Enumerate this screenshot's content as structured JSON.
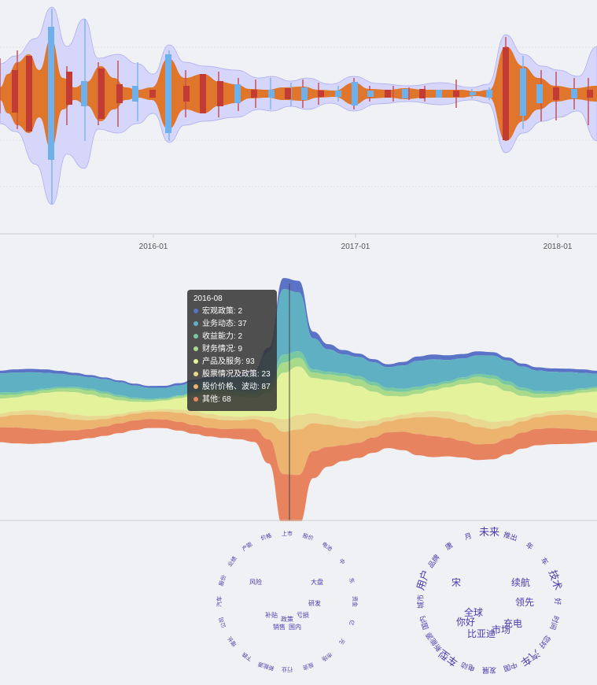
{
  "colors": {
    "background": "#f0f1f4",
    "envelope": "#d6d6fb",
    "envelope_stroke": "#a9a9f0",
    "orange": "#e0762b",
    "red": "#c23b34",
    "blue": "#6db0ec",
    "axis": "#cccccc"
  },
  "top_chart": {
    "x_ticks": [
      "2016-01",
      "2017-01",
      "2018-01"
    ]
  },
  "stream_chart": {
    "series": [
      {
        "name": "宏观政策",
        "color": "#5b73c7"
      },
      {
        "name": "业务动态",
        "color": "#5fb0c3"
      },
      {
        "name": "收益能力",
        "color": "#78c9a2"
      },
      {
        "name": "财务情况",
        "color": "#a9da8a"
      },
      {
        "name": "产品及服务",
        "color": "#e3f29b"
      },
      {
        "name": "股票情况及政策",
        "color": "#e9d890"
      },
      {
        "name": "股价价格、波动",
        "color": "#ecb46e"
      },
      {
        "name": "其他",
        "color": "#e7845f"
      }
    ],
    "tooltip": {
      "title": "2016-08",
      "values": [
        2,
        37,
        2,
        9,
        93,
        23,
        87,
        68
      ]
    }
  },
  "wordclouds": {
    "sad": [
      "上市",
      "股价",
      "电池",
      "中",
      "东",
      "资金",
      "亿",
      "元",
      "市场",
      "投资",
      "行业",
      "新能源",
      "下跌",
      "增长",
      "公司",
      "汽车",
      "股份",
      "业绩",
      "产能",
      "价格",
      "风险",
      "大盘",
      "补贴",
      "政策",
      "亏损",
      "销售",
      "国内",
      "研发"
    ],
    "happy": [
      "未来",
      "推出",
      "年",
      "车",
      "技术",
      "好",
      "时间",
      "您好",
      "汽车",
      "中国",
      "发展",
      "电动",
      "车型",
      "新能源",
      "国内",
      "城市",
      "用户",
      "品牌",
      "唐",
      "月",
      "宋",
      "续航",
      "你好",
      "比亚迪",
      "市场",
      "充电",
      "全球",
      "领先"
    ]
  }
}
